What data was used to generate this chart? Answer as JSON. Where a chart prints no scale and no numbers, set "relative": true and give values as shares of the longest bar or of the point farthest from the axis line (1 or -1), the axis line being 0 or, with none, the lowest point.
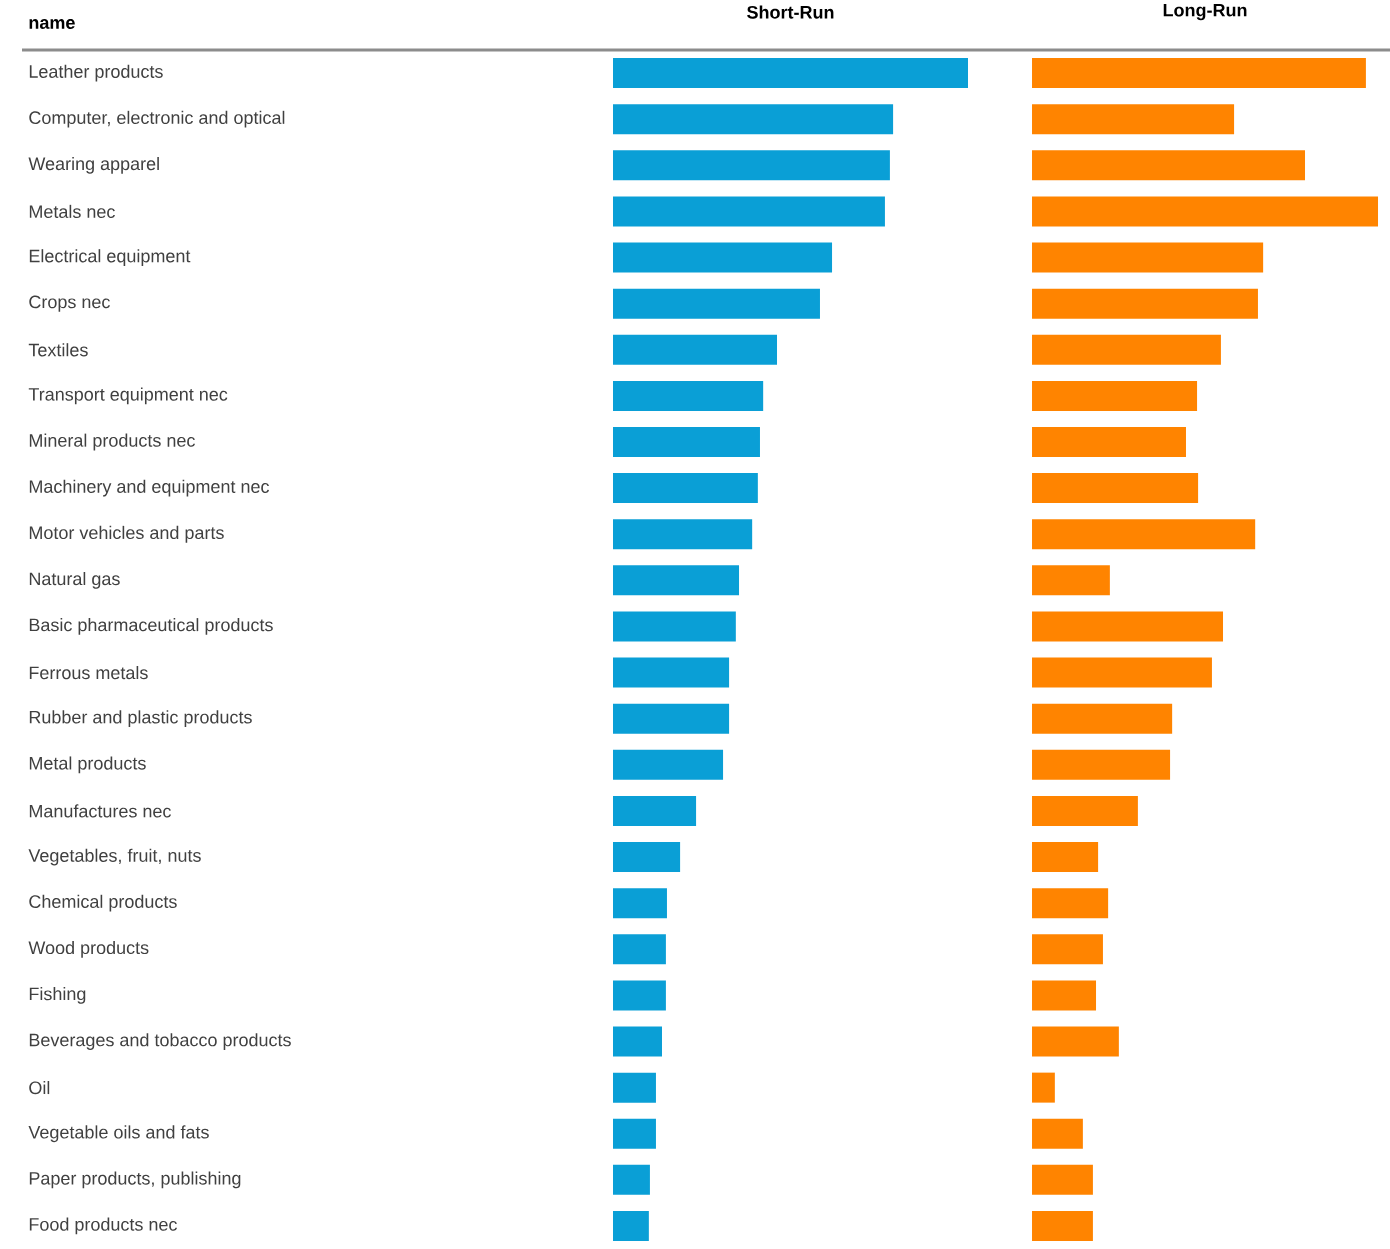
{
  "chart_data": [
    {
      "type": "bar",
      "orientation": "horizontal",
      "relative": true,
      "title": "Short-Run",
      "ylabel": "name",
      "color": "#0a9fd6",
      "categories": [
        "Leather products",
        "Computer, electronic and optical",
        "Wearing apparel",
        "Metals nec",
        "Electrical equipment",
        "Crops nec",
        "Textiles",
        "Transport equipment nec",
        "Mineral products nec",
        "Machinery and equipment nec",
        "Motor vehicles and parts",
        "Natural gas",
        "Basic pharmaceutical products",
        "Ferrous metals",
        "Rubber and plastic products",
        "Metal products",
        "Manufactures nec",
        "Vegetables, fruit, nuts",
        "Chemical products",
        "Wood products",
        "Fishing",
        "Beverages and tobacco products",
        "Oil",
        "Vegetable oils and fats",
        "Paper products, publishing",
        "Food products nec"
      ],
      "values": [
        1.0,
        0.789,
        0.78,
        0.766,
        0.617,
        0.583,
        0.462,
        0.423,
        0.414,
        0.408,
        0.392,
        0.355,
        0.346,
        0.327,
        0.327,
        0.31,
        0.234,
        0.189,
        0.152,
        0.149,
        0.149,
        0.138,
        0.121,
        0.121,
        0.104,
        0.101
      ]
    },
    {
      "type": "bar",
      "orientation": "horizontal",
      "relative": true,
      "title": "Long-Run",
      "color": "#ff8400",
      "values": [
        0.965,
        0.584,
        0.789,
        1.0,
        0.668,
        0.653,
        0.546,
        0.477,
        0.445,
        0.48,
        0.645,
        0.225,
        0.552,
        0.52,
        0.405,
        0.399,
        0.306,
        0.191,
        0.22,
        0.205,
        0.185,
        0.251,
        0.066,
        0.147,
        0.176,
        0.176
      ]
    }
  ]
}
